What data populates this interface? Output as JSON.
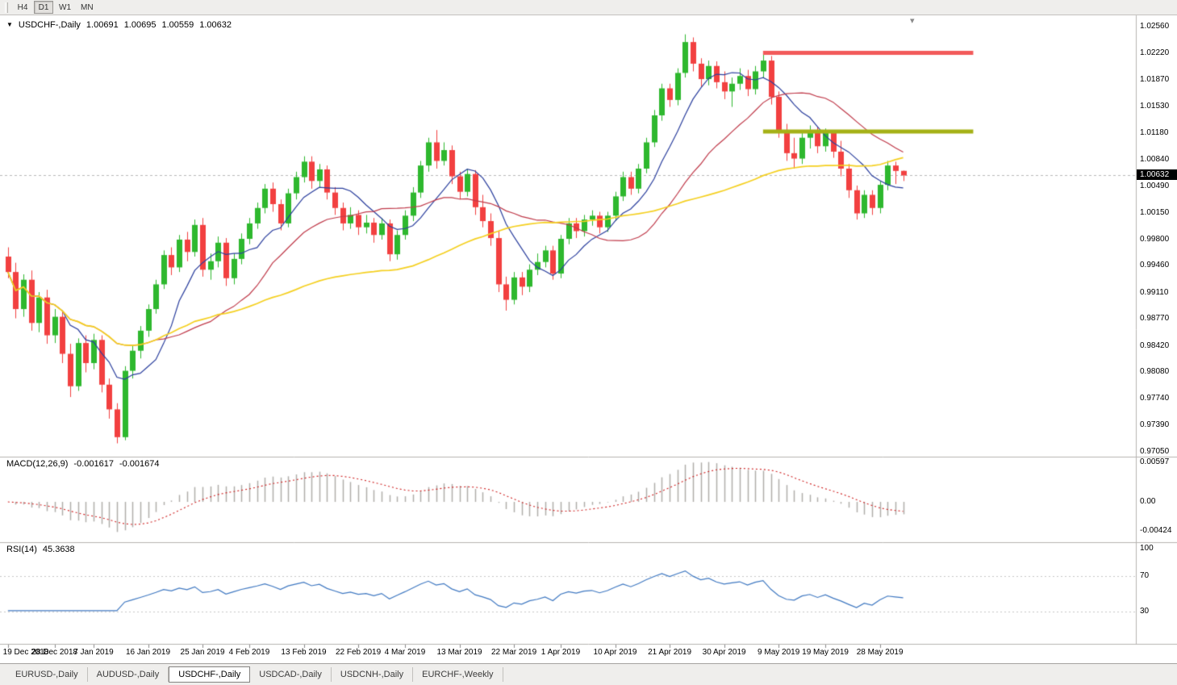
{
  "toolbar": {
    "timeframes": [
      {
        "label": "H4",
        "active": false
      },
      {
        "label": "D1",
        "active": true
      },
      {
        "label": "W1",
        "active": false
      },
      {
        "label": "MN",
        "active": false
      }
    ]
  },
  "header": {
    "symbol": "USDCHF-,Daily",
    "open": "1.00691",
    "high": "1.00695",
    "low": "1.00559",
    "close": "1.00632"
  },
  "icons": {
    "symbol_menu_triangle": "▼",
    "chart_shift_marker": "▾"
  },
  "price_axis": {
    "ticks": [
      "1.02560",
      "1.02220",
      "1.01870",
      "1.01530",
      "1.01180",
      "1.00840",
      "1.00490",
      "1.00150",
      "0.99800",
      "0.99460",
      "0.99110",
      "0.98770",
      "0.98420",
      "0.98080",
      "0.97740",
      "0.97390",
      "0.97050"
    ],
    "current": "1.00632"
  },
  "indicators": {
    "macd": {
      "label": "MACD(12,26,9)",
      "main_value": "-0.001617",
      "signal_value": "-0.001674",
      "axis_top": "0.00597",
      "axis_zero": "0.00",
      "axis_bottom": "-0.00424"
    },
    "rsi": {
      "label": "RSI(14)",
      "value": "45.3638",
      "axis": [
        "100",
        "70",
        "30"
      ]
    }
  },
  "time_axis": {
    "labels": [
      {
        "text": "19 Dec 2018",
        "index": 0
      },
      {
        "text": "28 Dec 2018",
        "index": 6
      },
      {
        "text": "7 Jan 2019",
        "index": 11
      },
      {
        "text": "16 Jan 2019",
        "index": 18
      },
      {
        "text": "25 Jan 2019",
        "index": 25
      },
      {
        "text": "4 Feb 2019",
        "index": 31
      },
      {
        "text": "13 Feb 2019",
        "index": 38
      },
      {
        "text": "22 Feb 2019",
        "index": 45
      },
      {
        "text": "4 Mar 2019",
        "index": 51
      },
      {
        "text": "13 Mar 2019",
        "index": 58
      },
      {
        "text": "22 Mar 2019",
        "index": 65
      },
      {
        "text": "1 Apr 2019",
        "index": 71
      },
      {
        "text": "10 Apr 2019",
        "index": 78
      },
      {
        "text": "21 Apr 2019",
        "index": 85
      },
      {
        "text": "30 Apr 2019",
        "index": 92
      },
      {
        "text": "9 May 2019",
        "index": 99
      },
      {
        "text": "19 May 2019",
        "index": 105
      },
      {
        "text": "28 May 2019",
        "index": 112
      }
    ]
  },
  "tabs": [
    {
      "label": "EURUSD-,Daily",
      "active": false
    },
    {
      "label": "AUDUSD-,Daily",
      "active": false
    },
    {
      "label": "USDCHF-,Daily",
      "active": true
    },
    {
      "label": "USDCAD-,Daily",
      "active": false
    },
    {
      "label": "USDCNH-,Daily",
      "active": false
    },
    {
      "label": "EURCHF-,Weekly",
      "active": false
    }
  ],
  "colors": {
    "up_candle": "#2eb82e",
    "down_candle": "#f24040",
    "ma_fast": "#2b3f9e",
    "ma_mid": "#c03a4a",
    "ma_slow": "#f5d020",
    "resistance_line": "#f25a5a",
    "support_line": "#a5b116",
    "macd_histogram": "#b0aeab",
    "macd_signal": "#cf1f1f",
    "rsi_line": "#4079c2",
    "rsi_level": "#c8c8c8",
    "current_price_line": "#b9b9b9",
    "separator": "#b6b4b1",
    "price_tag_bg": "#000000"
  },
  "chart_data": {
    "type": "candlestick",
    "symbol": "USDCHF",
    "timeframe": "Daily",
    "title": "USDCHF-,Daily",
    "ylim": [
      0.9705,
      1.0256
    ],
    "candles": [
      [
        0.9958,
        0.997,
        0.993,
        0.9938
      ],
      [
        0.9938,
        0.995,
        0.9878,
        0.989
      ],
      [
        0.989,
        0.9935,
        0.988,
        0.9928
      ],
      [
        0.9928,
        0.994,
        0.9862,
        0.9872
      ],
      [
        0.9872,
        0.9912,
        0.986,
        0.9905
      ],
      [
        0.9905,
        0.9915,
        0.9845,
        0.9856
      ],
      [
        0.9856,
        0.989,
        0.9846,
        0.988
      ],
      [
        0.988,
        0.9888,
        0.982,
        0.9832
      ],
      [
        0.9832,
        0.9845,
        0.9776,
        0.979
      ],
      [
        0.979,
        0.9852,
        0.9784,
        0.9846
      ],
      [
        0.9846,
        0.9856,
        0.9808,
        0.982
      ],
      [
        0.982,
        0.9858,
        0.9812,
        0.985
      ],
      [
        0.985,
        0.9856,
        0.9782,
        0.9792
      ],
      [
        0.9792,
        0.98,
        0.9748,
        0.976
      ],
      [
        0.976,
        0.9768,
        0.9716,
        0.9724
      ],
      [
        0.9724,
        0.9816,
        0.972,
        0.981
      ],
      [
        0.981,
        0.9842,
        0.98,
        0.9836
      ],
      [
        0.9836,
        0.9868,
        0.9826,
        0.9862
      ],
      [
        0.9862,
        0.9896,
        0.9854,
        0.989
      ],
      [
        0.989,
        0.9928,
        0.9884,
        0.9922
      ],
      [
        0.9922,
        0.9966,
        0.9916,
        0.996
      ],
      [
        0.996,
        0.997,
        0.9934,
        0.9944
      ],
      [
        0.9944,
        0.9986,
        0.9938,
        0.998
      ],
      [
        0.998,
        0.999,
        0.9952,
        0.9964
      ],
      [
        0.9964,
        1.0006,
        0.9958,
        0.9999
      ],
      [
        0.9999,
        1.0008,
        0.9932,
        0.9941
      ],
      [
        0.9941,
        0.9962,
        0.9928,
        0.9952
      ],
      [
        0.9952,
        0.9984,
        0.9944,
        0.9976
      ],
      [
        0.9976,
        0.9982,
        0.992,
        0.993
      ],
      [
        0.993,
        0.9962,
        0.9922,
        0.9955
      ],
      [
        0.9955,
        0.9988,
        0.9948,
        0.9981
      ],
      [
        0.9981,
        1.0008,
        0.9974,
        1.0001
      ],
      [
        1.0001,
        1.0028,
        0.9994,
        1.0021
      ],
      [
        1.0021,
        1.0052,
        1.0014,
        1.0046
      ],
      [
        1.0046,
        1.0054,
        1.0016,
        1.0026
      ],
      [
        1.0026,
        1.0032,
        0.9992,
        1.0001
      ],
      [
        1.0001,
        1.0046,
        0.9996,
        1.004
      ],
      [
        1.004,
        1.0068,
        1.0032,
        1.0061
      ],
      [
        1.0061,
        1.0088,
        1.0054,
        1.0081
      ],
      [
        1.0081,
        1.0088,
        1.0046,
        1.0056
      ],
      [
        1.0056,
        1.0078,
        1.0048,
        1.0071
      ],
      [
        1.0071,
        1.0076,
        1.0032,
        1.0041
      ],
      [
        1.0041,
        1.0048,
        1.0012,
        1.0021
      ],
      [
        1.0021,
        1.0028,
        0.9992,
        1.0001
      ],
      [
        1.0001,
        1.0022,
        0.9994,
        1.0012
      ],
      [
        1.0012,
        1.0018,
        0.9986,
        0.9996
      ],
      [
        0.9996,
        1.0012,
        0.9988,
        1.0002
      ],
      [
        1.0002,
        1.0008,
        0.9976,
        0.9986
      ],
      [
        0.9986,
        1.0008,
        0.998,
        1.0001
      ],
      [
        1.0001,
        1.0006,
        0.9952,
        0.9961
      ],
      [
        0.9961,
        0.9992,
        0.9954,
        0.9986
      ],
      [
        0.9986,
        1.0018,
        0.998,
        1.0011
      ],
      [
        1.0011,
        1.0048,
        1.0004,
        1.0041
      ],
      [
        1.0041,
        1.0082,
        1.0034,
        1.0076
      ],
      [
        1.0076,
        1.0112,
        1.0068,
        1.0106
      ],
      [
        1.0106,
        1.0122,
        1.0072,
        1.0082
      ],
      [
        1.0082,
        1.0106,
        1.0076,
        1.0096
      ],
      [
        1.0096,
        1.0102,
        1.0052,
        1.0062
      ],
      [
        1.0062,
        1.0068,
        1.0032,
        1.0042
      ],
      [
        1.0042,
        1.0072,
        1.0036,
        1.0065
      ],
      [
        1.0065,
        1.007,
        1.0012,
        1.0022
      ],
      [
        1.0022,
        1.0038,
        0.9996,
        1.0004
      ],
      [
        1.0004,
        1.0014,
        0.9972,
        0.9982
      ],
      [
        0.9982,
        0.9992,
        0.9912,
        0.9922
      ],
      [
        0.9922,
        0.9932,
        0.9888,
        0.9902
      ],
      [
        0.9902,
        0.9938,
        0.9896,
        0.9931
      ],
      [
        0.9931,
        0.9938,
        0.9908,
        0.9919
      ],
      [
        0.9919,
        0.9948,
        0.9912,
        0.9941
      ],
      [
        0.9941,
        0.9962,
        0.9934,
        0.9951
      ],
      [
        0.9951,
        0.9972,
        0.9944,
        0.9966
      ],
      [
        0.9966,
        0.9972,
        0.9928,
        0.9936
      ],
      [
        0.9936,
        0.9986,
        0.993,
        0.9981
      ],
      [
        0.9981,
        1.0008,
        0.9974,
        1.0001
      ],
      [
        1.0001,
        1.0008,
        0.9982,
        0.9991
      ],
      [
        0.9991,
        1.0012,
        0.9984,
        1.0006
      ],
      [
        1.0006,
        1.0018,
        0.9998,
        1.0011
      ],
      [
        1.0011,
        1.0016,
        0.9988,
        0.9996
      ],
      [
        0.9996,
        1.0016,
        0.999,
        1.0011
      ],
      [
        1.0011,
        1.0042,
        1.0004,
        1.0036
      ],
      [
        1.0036,
        1.0068,
        1.003,
        1.0061
      ],
      [
        1.0061,
        1.0068,
        1.0038,
        1.0046
      ],
      [
        1.0046,
        1.0078,
        1.004,
        1.0072
      ],
      [
        1.0072,
        1.0112,
        1.0066,
        1.0106
      ],
      [
        1.0106,
        1.0148,
        1.01,
        1.0141
      ],
      [
        1.0141,
        1.0182,
        1.0134,
        1.0176
      ],
      [
        1.0176,
        1.0182,
        1.0152,
        1.0161
      ],
      [
        1.0161,
        1.0202,
        1.0154,
        1.0196
      ],
      [
        1.0196,
        1.0246,
        1.019,
        1.0236
      ],
      [
        1.0236,
        1.0242,
        1.0198,
        1.0208
      ],
      [
        1.0208,
        1.0215,
        1.0178,
        1.0188
      ],
      [
        1.0188,
        1.0212,
        1.018,
        1.0205
      ],
      [
        1.0205,
        1.0211,
        1.0176,
        1.0184
      ],
      [
        1.0184,
        1.0198,
        1.0162,
        1.0172
      ],
      [
        1.0172,
        1.019,
        1.0152,
        1.0182
      ],
      [
        1.0182,
        1.0202,
        1.0174,
        1.0192
      ],
      [
        1.0192,
        1.02,
        1.0166,
        1.0175
      ],
      [
        1.0175,
        1.0205,
        1.0168,
        1.0198
      ],
      [
        1.0198,
        1.0222,
        1.019,
        1.0212
      ],
      [
        1.0212,
        1.0218,
        1.0155,
        1.0165
      ],
      [
        1.0165,
        1.0172,
        1.0112,
        1.0121
      ],
      [
        1.0121,
        1.013,
        1.0082,
        1.0092
      ],
      [
        1.0092,
        1.0112,
        1.0072,
        1.0085
      ],
      [
        1.0085,
        1.012,
        1.0078,
        1.0112
      ],
      [
        1.0112,
        1.0128,
        1.0098,
        1.0122
      ],
      [
        1.0122,
        1.0126,
        1.0092,
        1.0101
      ],
      [
        1.0101,
        1.0124,
        1.0094,
        1.0118
      ],
      [
        1.0118,
        1.0122,
        1.0086,
        1.0094
      ],
      [
        1.0094,
        1.0108,
        1.0062,
        1.0072
      ],
      [
        1.0072,
        1.0078,
        1.0034,
        1.0044
      ],
      [
        1.0044,
        1.005,
        1.0006,
        1.0014
      ],
      [
        1.0014,
        1.0044,
        1.0008,
        1.0038
      ],
      [
        1.0038,
        1.0044,
        1.0012,
        1.0021
      ],
      [
        1.0021,
        1.0056,
        1.0014,
        1.0051
      ],
      [
        1.0051,
        1.0082,
        1.0044,
        1.0076
      ],
      [
        1.0076,
        1.0081,
        1.0052,
        1.0069
      ],
      [
        1.00691,
        1.00695,
        1.00559,
        1.00632
      ]
    ],
    "moving_averages": [
      {
        "period": 8,
        "color_key": "ma_fast"
      },
      {
        "period": 20,
        "color_key": "ma_mid"
      },
      {
        "period": 50,
        "color_key": "ma_slow"
      }
    ],
    "horizontal_lines": [
      {
        "price": 1.0222,
        "from_index": 97,
        "to_index": 124,
        "color_key": "resistance_line",
        "width": 5
      },
      {
        "price": 1.012,
        "from_index": 97,
        "to_index": 124,
        "color_key": "support_line",
        "width": 5
      }
    ],
    "current_price": 1.00632,
    "macd": {
      "fast": 12,
      "slow": 26,
      "signal": 9,
      "ylim": [
        -0.00424,
        0.00597
      ]
    },
    "rsi": {
      "period": 14,
      "ylim": [
        0,
        100
      ],
      "levels": [
        70,
        30
      ]
    }
  }
}
